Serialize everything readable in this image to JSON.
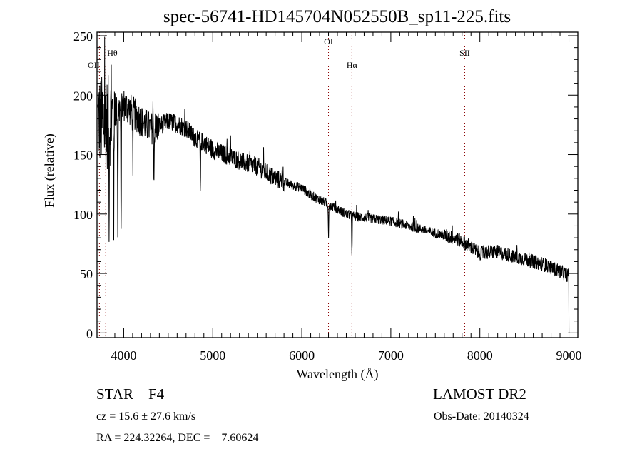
{
  "chart_data": {
    "type": "line",
    "title": "spec-56741-HD145704N052550B_sp11-225.fits",
    "xlabel": "Wavelength (Å)",
    "ylabel": "Flux (relative)",
    "xlim": [
      3700,
      9100
    ],
    "ylim": [
      -4,
      253
    ],
    "xticks": [
      4000,
      5000,
      6000,
      7000,
      8000,
      9000
    ],
    "xtick_labels": [
      "4000",
      "5000",
      "6000",
      "7000",
      "8000",
      "9000"
    ],
    "yticks": [
      0,
      50,
      100,
      150,
      200,
      250
    ],
    "ytick_labels": [
      "0",
      "50",
      "100",
      "150",
      "200",
      "250"
    ],
    "grid": false,
    "series": [
      {
        "name": "spectrum",
        "continuum_x": [
          3700,
          3800,
          3900,
          4000,
          4100,
          4200,
          4300,
          4400,
          4500,
          4600,
          4700,
          4800,
          4900,
          5000,
          5100,
          5200,
          5300,
          5400,
          5500,
          5600,
          5700,
          5800,
          5900,
          6000,
          6100,
          6200,
          6300,
          6400,
          6500,
          6600,
          6700,
          6800,
          6900,
          7000,
          7100,
          7200,
          7300,
          7400,
          7500,
          7600,
          7700,
          7800,
          7900,
          8000,
          8100,
          8200,
          8300,
          8400,
          8500,
          8600,
          8700,
          8800,
          8900,
          9000
        ],
        "continuum_y": [
          180,
          175,
          185,
          192,
          186,
          178,
          172,
          174,
          178,
          176,
          172,
          164,
          160,
          154,
          151,
          148,
          145,
          142,
          140,
          135,
          130,
          127,
          124,
          122,
          116,
          112,
          108,
          104,
          100,
          98,
          97,
          96,
          95,
          94,
          92,
          90,
          88,
          86,
          84,
          82,
          80,
          77,
          72,
          67,
          68,
          68,
          66,
          64,
          62,
          60,
          58,
          55,
          52,
          48
        ],
        "absorption_lines": [
          {
            "x": 3835,
            "depth": 70
          },
          {
            "x": 3889,
            "depth": 80
          },
          {
            "x": 3933,
            "depth": 100
          },
          {
            "x": 3970,
            "depth": 115
          },
          {
            "x": 4102,
            "depth": 45
          },
          {
            "x": 4340,
            "depth": 40
          },
          {
            "x": 4861,
            "depth": 42
          },
          {
            "x": 6300,
            "depth": 25
          },
          {
            "x": 6563,
            "depth": 30
          }
        ],
        "end_drop_x": 9000
      }
    ],
    "line_markers": [
      {
        "label": "OII",
        "x": 3727
      },
      {
        "label": "Hθ",
        "x": 3798
      },
      {
        "label": "OI",
        "x": 6300
      },
      {
        "label": "Hα",
        "x": 6563
      },
      {
        "label": "SII",
        "x": 7830
      }
    ],
    "colors": {
      "spectrum": "#000000",
      "markers": "#8b0000"
    }
  },
  "info": {
    "object": "STAR    F4",
    "survey": "LAMOST DR2",
    "cz": "cz = 15.6 ± 27.6 km/s",
    "obs_date": "Obs-Date: 20140324",
    "radec": "RA = 224.32264, DEC =    7.60624"
  }
}
